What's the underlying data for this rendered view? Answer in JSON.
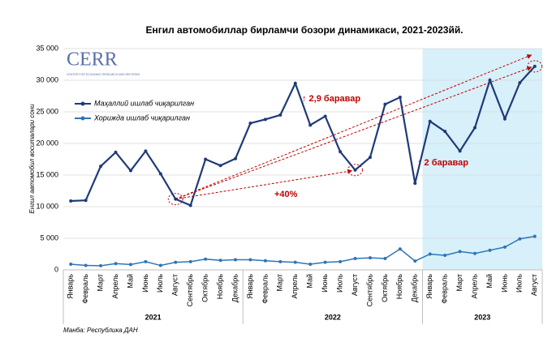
{
  "chart_data": {
    "type": "line",
    "title": "Енгил автомобиллар бирламчи бозори динамикаси, 2021-2023йй.",
    "y_label": "Енгил автомобил воситалари сони",
    "source": "Манба: Республика ДАН",
    "logo": {
      "name": "CERR",
      "subtitle": "CENTER FOR ECONOMIC RESEARCH AND REFORMS"
    },
    "categories": [
      "Январь",
      "Февраль",
      "Март",
      "Апрель",
      "Май",
      "Июнь",
      "Июль",
      "Август",
      "Сентябрь",
      "Октябрь",
      "Ноябрь",
      "Декабрь",
      "Январь",
      "Февраль",
      "Март",
      "Апрель",
      "Май",
      "Июнь",
      "Июль",
      "Август",
      "Сентябрь",
      "Октябрь",
      "Ноябрь",
      "Декабрь",
      "Январь",
      "Февраль",
      "Март",
      "Апрель",
      "Май",
      "Июнь",
      "Июль",
      "Август"
    ],
    "year_groups": [
      {
        "label": "2021",
        "size": 12
      },
      {
        "label": "2022",
        "size": 12
      },
      {
        "label": "2023",
        "size": 8
      }
    ],
    "series": [
      {
        "name": "Маҳаллий ишлаб чиқарилган",
        "color": "#1f3a7a",
        "values": [
          10900,
          11000,
          16400,
          18600,
          15700,
          18800,
          15200,
          11200,
          10200,
          17500,
          16500,
          17600,
          23200,
          23800,
          24500,
          29500,
          22900,
          24300,
          18700,
          15800,
          17800,
          26200,
          27300,
          13700,
          23500,
          21900,
          18800,
          22500,
          30000,
          23900,
          29600,
          32200
        ]
      },
      {
        "name": "Хорижда ишлаб чиқарилган",
        "color": "#2e75b6",
        "values": [
          900,
          700,
          650,
          1000,
          850,
          1300,
          700,
          1200,
          1300,
          1700,
          1500,
          1600,
          1600,
          1450,
          1300,
          1200,
          900,
          1200,
          1300,
          1800,
          1900,
          1800,
          3300,
          1400,
          2500,
          2300,
          2900,
          2600,
          3100,
          3600,
          4900,
          5300
        ]
      }
    ],
    "ylim": [
      0,
      35000
    ],
    "yticks": [
      0,
      {
        "value": 5000,
        "label": "5 000"
      },
      {
        "value": 10000,
        "label": "10 000"
      },
      {
        "value": 15000,
        "label": "15 000"
      },
      {
        "value": 20000,
        "label": "20 000"
      },
      {
        "value": 25000,
        "label": "25 000"
      },
      {
        "value": 30000,
        "label": "30 000"
      },
      {
        "value": 35000,
        "label": "35 000"
      }
    ],
    "grid": true,
    "annotations": [
      "↑ 2,9 баравар",
      "↑ 2 баравар",
      "+40%"
    ]
  }
}
